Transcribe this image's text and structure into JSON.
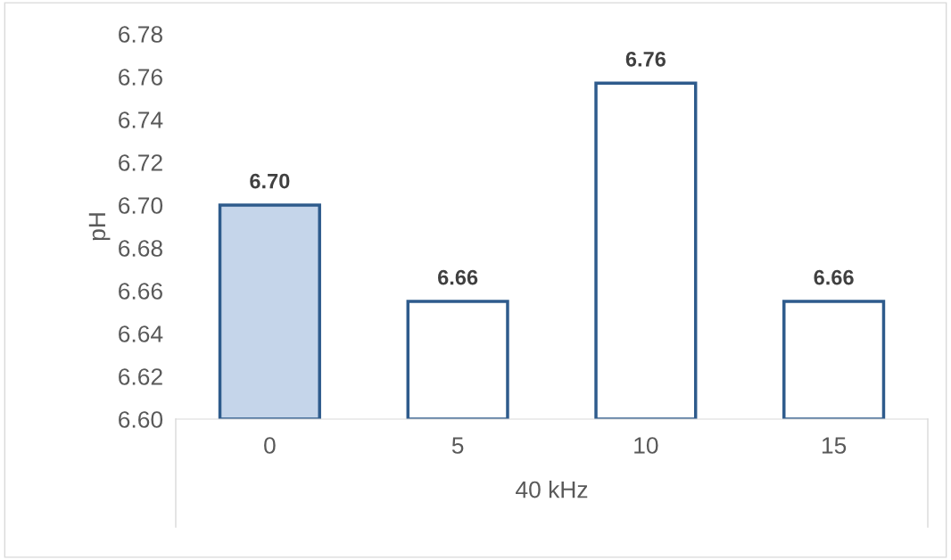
{
  "chart_data": {
    "type": "bar",
    "xlabel": "40 kHz",
    "ylabel": "pH",
    "categories": [
      "0",
      "5",
      "10",
      "15"
    ],
    "values": [
      6.7,
      6.655,
      6.757,
      6.655
    ],
    "colors": [
      "#c5d5ea",
      "#ffffff",
      "#ffffff",
      "#ffffff"
    ],
    "value_labels": [
      "6.70",
      "6.66",
      "6.76",
      "6.66"
    ],
    "ylim": [
      6.6,
      6.78
    ],
    "yticks": [
      {
        "value": 6.6,
        "label": "6.60"
      },
      {
        "value": 6.62,
        "label": "6.62"
      },
      {
        "value": 6.64,
        "label": "6.64"
      },
      {
        "value": 6.66,
        "label": "6.66"
      },
      {
        "value": 6.68,
        "label": "6.68"
      },
      {
        "value": 6.7,
        "label": "6.70"
      },
      {
        "value": 6.72,
        "label": "6.72"
      },
      {
        "value": 6.74,
        "label": "6.74"
      },
      {
        "value": 6.76,
        "label": "6.76"
      },
      {
        "value": 6.78,
        "label": "6.78"
      }
    ]
  }
}
